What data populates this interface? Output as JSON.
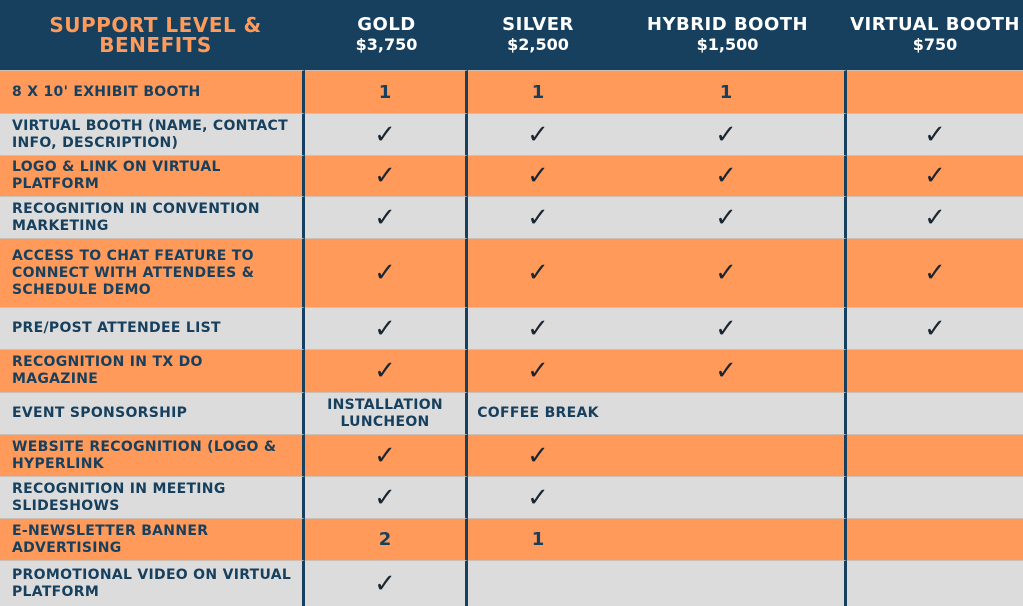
{
  "header": {
    "title": "SUPPORT LEVEL & BENEFITS",
    "columns": [
      {
        "name": "GOLD",
        "price": "$3,750"
      },
      {
        "name": "SILVER",
        "price": "$2,500"
      },
      {
        "name": "HYBRID BOOTH",
        "price": "$1,500"
      },
      {
        "name": "VIRTUAL BOOTH",
        "price": "$750"
      }
    ]
  },
  "check_mark": "✓",
  "rows": [
    {
      "label": "8 X 10' EXHIBIT BOOTH",
      "values": [
        "1",
        "1",
        "1",
        ""
      ]
    },
    {
      "label": "VIRTUAL BOOTH (NAME, CONTACT INFO, DESCRIPTION)",
      "values": [
        "✓",
        "✓",
        "✓",
        "✓"
      ]
    },
    {
      "label": "LOGO & LINK ON VIRTUAL PLATFORM",
      "values": [
        "✓",
        "✓",
        "✓",
        "✓"
      ]
    },
    {
      "label": "RECOGNITION IN CONVENTION MARKETING",
      "values": [
        "✓",
        "✓",
        "✓",
        "✓"
      ]
    },
    {
      "label": "ACCESS TO CHAT FEATURE TO CONNECT WITH ATTENDEES & SCHEDULE DEMO",
      "values": [
        "✓",
        "✓",
        "✓",
        "✓"
      ]
    },
    {
      "label": "PRE/POST ATTENDEE LIST",
      "values": [
        "✓",
        "✓",
        "✓",
        "✓"
      ]
    },
    {
      "label": "RECOGNITION IN TX DO MAGAZINE",
      "values": [
        "✓",
        "✓",
        "✓",
        ""
      ]
    },
    {
      "label": "EVENT SPONSORSHIP",
      "values": [
        "INSTALLATION LUNCHEON",
        "COFFEE BREAK",
        "",
        ""
      ]
    },
    {
      "label": "WEBSITE RECOGNITION (LOGO & HYPERLINK",
      "values": [
        "✓",
        "✓",
        "",
        ""
      ]
    },
    {
      "label": "RECOGNITION IN MEETING SLIDESHOWS",
      "values": [
        "✓",
        "✓",
        "",
        ""
      ]
    },
    {
      "label": "E-NEWSLETTER BANNER ADVERTISING",
      "values": [
        "2",
        "1",
        "",
        ""
      ]
    },
    {
      "label": "PROMOTIONAL VIDEO ON VIRTUAL PLATFORM",
      "values": [
        "✓",
        "",
        "",
        ""
      ]
    }
  ],
  "colors": {
    "navy": "#17405e",
    "orange": "#ff9a5a",
    "gray": "#dcdcdc"
  }
}
